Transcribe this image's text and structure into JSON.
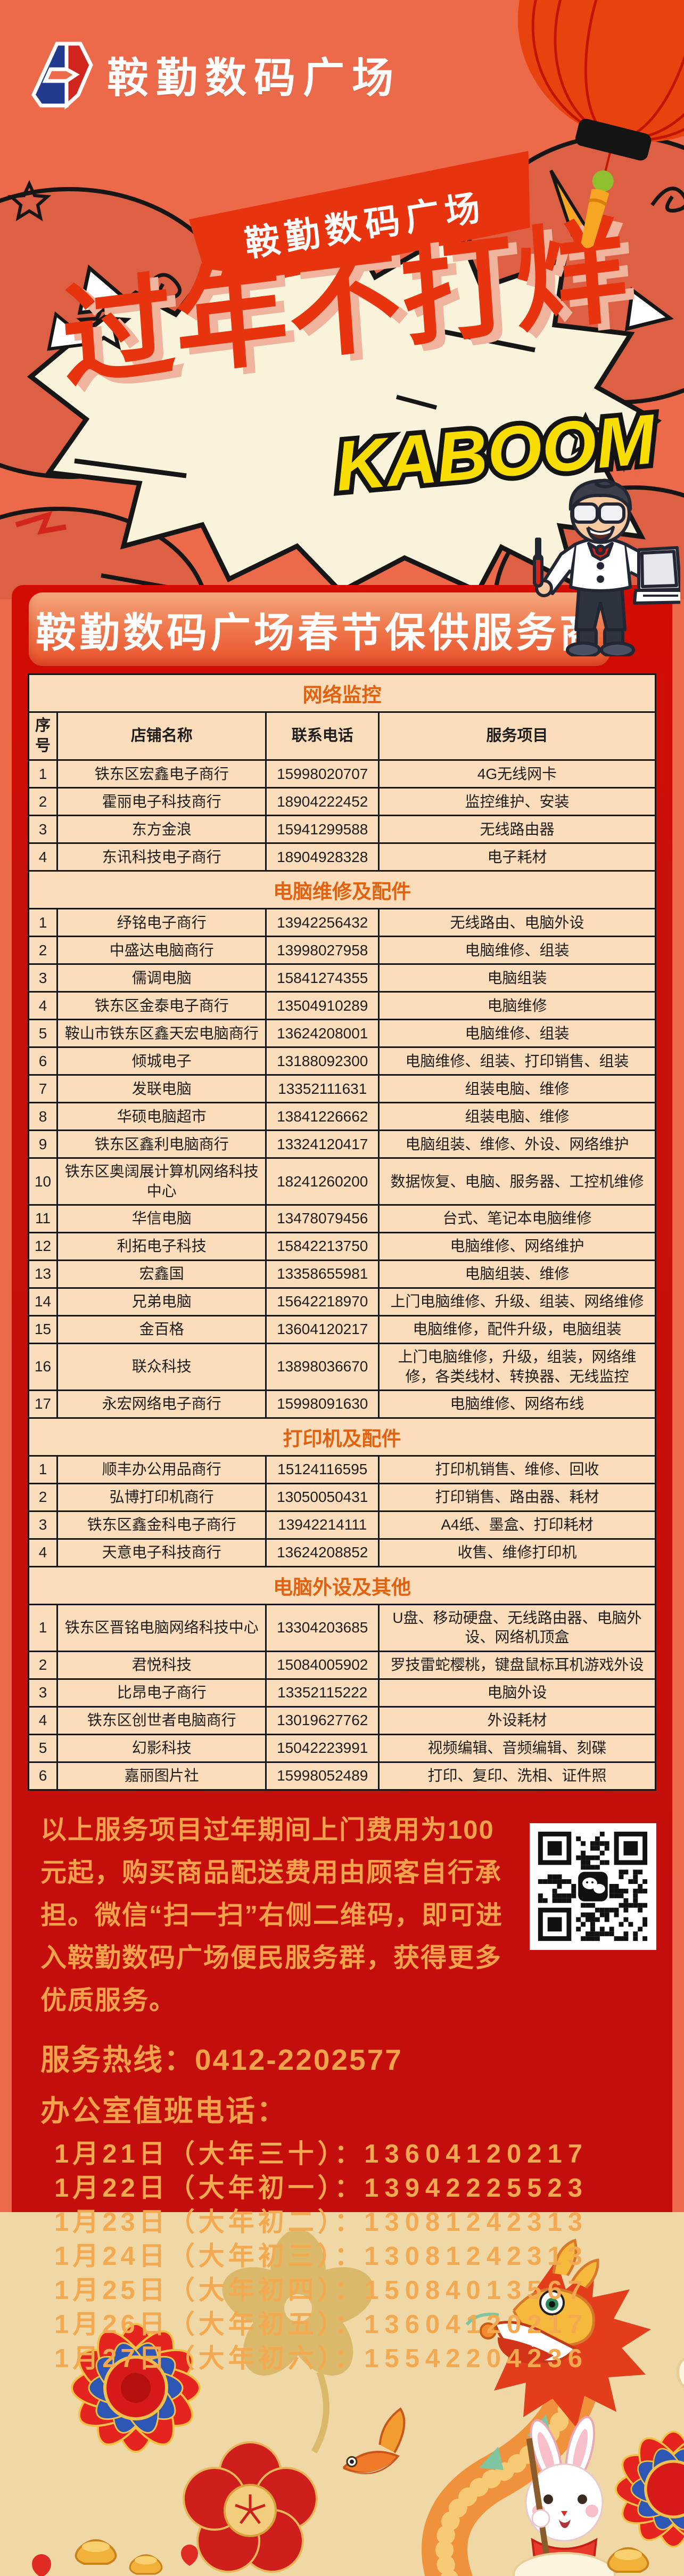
{
  "palette": {
    "background_orange": "#EC6A4A",
    "panel_red": "#C40E0B",
    "band_red": "#D40B01",
    "table_peach": "#FBDCBB",
    "section_orange": "#E2610F",
    "footer_gold": "#F2A24C",
    "headline_red": "#E7330E",
    "kaboom_yellow": "#F8DE00",
    "sand": "#EFD8A6"
  },
  "logo": {
    "text": "鞍勤数码广场"
  },
  "burst": {
    "ribbon_text": "鞍勤数码广场",
    "headline": "过年不打烊",
    "kaboom": "KABOOM !!"
  },
  "banner": {
    "title": "鞍勤数码广场春节保供服务商"
  },
  "table": {
    "columns": [
      "序号",
      "店铺名称",
      "联系电话",
      "服务项目"
    ],
    "sections": [
      {
        "title": "网络监控",
        "rows": [
          [
            "1",
            "铁东区宏鑫电子商行",
            "15998020707",
            "4G无线网卡"
          ],
          [
            "2",
            "霍丽电子科技商行",
            "18904222452",
            "监控维护、安装"
          ],
          [
            "3",
            "东方金浪",
            "15941299588",
            "无线路由器"
          ],
          [
            "4",
            "东讯科技电子商行",
            "18904928328",
            "电子耗材"
          ]
        ]
      },
      {
        "title": "电脑维修及配件",
        "rows": [
          [
            "1",
            "纾铭电子商行",
            "13942256432",
            "无线路由、电脑外设"
          ],
          [
            "2",
            "中盛达电脑商行",
            "13998027958",
            "电脑维修、组装"
          ],
          [
            "3",
            "儒调电脑",
            "15841274355",
            "电脑组装"
          ],
          [
            "4",
            "铁东区金泰电子商行",
            "13504910289",
            "电脑维修"
          ],
          [
            "5",
            "鞍山市铁东区鑫天宏电脑商行",
            "13624208001",
            "电脑维修、组装"
          ],
          [
            "6",
            "倾城电子",
            "13188092300",
            "电脑维修、组装、打印销售、组装"
          ],
          [
            "7",
            "发联电脑",
            "13352111631",
            "组装电脑、维修"
          ],
          [
            "8",
            "华硕电脑超市",
            "13841226662",
            "组装电脑、维修"
          ],
          [
            "9",
            "铁东区鑫利电脑商行",
            "13324120417",
            "电脑组装、维修、外设、网络维护"
          ],
          [
            "10",
            "铁东区奥阔展计算机网络科技中心",
            "18241260200",
            "数据恢复、电脑、服务器、工控机维修"
          ],
          [
            "11",
            "华信电脑",
            "13478079456",
            "台式、笔记本电脑维修"
          ],
          [
            "12",
            "利拓电子科技",
            "15842213750",
            "电脑维修、网络维护"
          ],
          [
            "13",
            "宏鑫国",
            "13358655981",
            "电脑组装、维修"
          ],
          [
            "14",
            "兄弟电脑",
            "15642218970",
            "上门电脑维修、升级、组装、网络维修"
          ],
          [
            "15",
            "金百格",
            "13604120217",
            "电脑维修，配件升级，电脑组装"
          ],
          [
            "16",
            "联众科技",
            "13898036670",
            "上门电脑维修，升级，组装，网络维修，各类线材、转换器、无线监控"
          ],
          [
            "17",
            "永宏网络电子商行",
            "15998091630",
            "电脑维修、网络布线"
          ]
        ]
      },
      {
        "title": "打印机及配件",
        "rows": [
          [
            "1",
            "顺丰办公用品商行",
            "15124116595",
            "打印机销售、维修、回收"
          ],
          [
            "2",
            "弘博打印机商行",
            "13050050431",
            "打印销售、路由器、耗材"
          ],
          [
            "3",
            "铁东区鑫金科电子商行",
            "13942214111",
            "A4纸、墨盒、打印耗材"
          ],
          [
            "4",
            "天意电子科技商行",
            "13624208852",
            "收售、维修打印机"
          ]
        ]
      },
      {
        "title": "电脑外设及其他",
        "rows": [
          [
            "1",
            "铁东区晋铭电脑网络科技中心",
            "13304203685",
            "U盘、移动硬盘、无线路由器、电脑外设、网络机顶盒"
          ],
          [
            "2",
            "君悦科技",
            "15084005902",
            "罗技雷蛇樱桃，键盘鼠标耳机游戏外设"
          ],
          [
            "3",
            "比昂电子商行",
            "13352115222",
            "电脑外设"
          ],
          [
            "4",
            "铁东区创世者电脑商行",
            "13019627762",
            "外设耗材"
          ],
          [
            "5",
            "幻影科技",
            "15042223991",
            "视频编辑、音频编辑、刻碟"
          ],
          [
            "6",
            "嘉丽图片社",
            "15998052489",
            "打印、复印、洗相、证件照"
          ]
        ]
      }
    ]
  },
  "footer": {
    "notice": "以上服务项目过年期间上门费用为100元起，购买商品配送费用由顾客自行承担。微信“扫一扫”右侧二维码，即可进入鞍勤数码广场便民服务群，获得更多优质服务。",
    "hotline_label": "服务热线：",
    "hotline_number": "0412-2202577",
    "office_label": "办公室值班电话：",
    "duty_phones": [
      {
        "date": "1月21日",
        "note": "大年三十",
        "phone": "13604120217"
      },
      {
        "date": "1月22日",
        "note": "大年初一",
        "phone": "13942225523"
      },
      {
        "date": "1月23日",
        "note": "大年初二",
        "phone": "13081242313"
      },
      {
        "date": "1月24日",
        "note": "大年初三",
        "phone": "13081242313"
      },
      {
        "date": "1月25日",
        "note": "大年初四",
        "phone": "15084013567"
      },
      {
        "date": "1月26日",
        "note": "大年初五",
        "phone": "13604120217"
      },
      {
        "date": "1月27日",
        "note": "大年初六",
        "phone": "15542204236"
      }
    ]
  }
}
